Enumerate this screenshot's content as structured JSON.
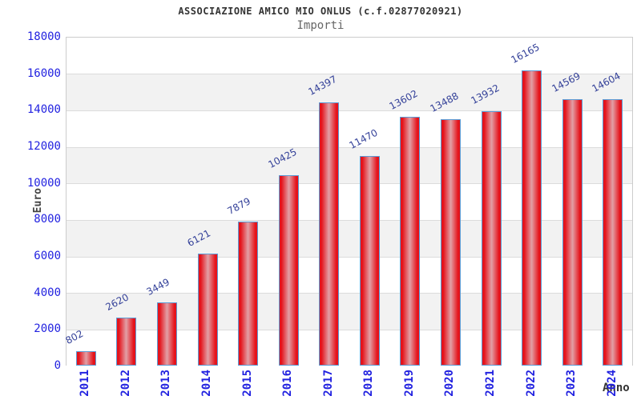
{
  "header": {
    "title": "ASSOCIAZIONE AMICO MIO ONLUS (c.f.02877020921)",
    "subtitle": "Importi"
  },
  "chart_data": {
    "type": "bar",
    "title": "ASSOCIAZIONE AMICO MIO ONLUS (c.f.02877020921)",
    "subtitle": "Importi",
    "categories": [
      "2011",
      "2012",
      "2013",
      "2014",
      "2015",
      "2016",
      "2017",
      "2018",
      "2019",
      "2020",
      "2021",
      "2022",
      "2023",
      "2024"
    ],
    "values": [
      802,
      2620,
      3449,
      6121,
      7879,
      10425,
      14397,
      11470,
      13602,
      13488,
      13932,
      16165,
      14569,
      14604
    ],
    "xlabel": "Anno",
    "ylabel": "Euro",
    "ylim": [
      0,
      18000
    ],
    "ytick_step": 2000,
    "grid": true,
    "legend": "none",
    "band_colors": [
      "#ffffff",
      "#f2f2f2"
    ],
    "gridline_color": "#dcdcdc",
    "plot_border_color": "#cccccc",
    "bar_edge_color": "#e5131b",
    "bar_center_color": "#e2a0a6",
    "bar_border_color": "#5b9bd5",
    "tick_label_color": "#2222e0",
    "value_label_color": "#344199",
    "title_color": "#333333",
    "subtitle_color": "#666666",
    "axis_title_color": "#444444"
  }
}
